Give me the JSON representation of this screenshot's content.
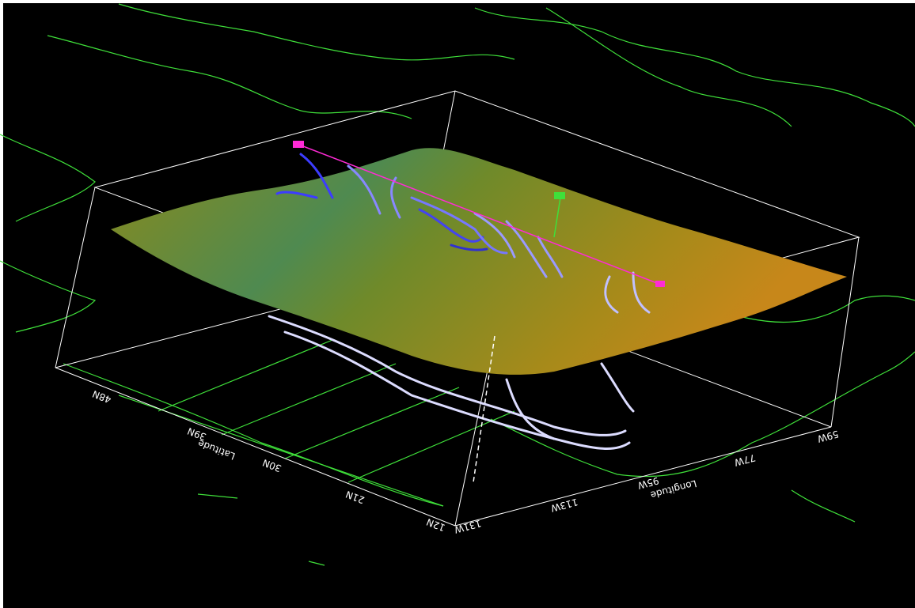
{
  "scene": {
    "latitude_axis": {
      "label": "Latitude",
      "ticks": [
        "48N",
        "39N",
        "30N",
        "21N",
        "12N"
      ]
    },
    "longitude_axis": {
      "label": "Longitude",
      "ticks": [
        "131W",
        "113W",
        "95W",
        "77W",
        "59W"
      ]
    }
  }
}
